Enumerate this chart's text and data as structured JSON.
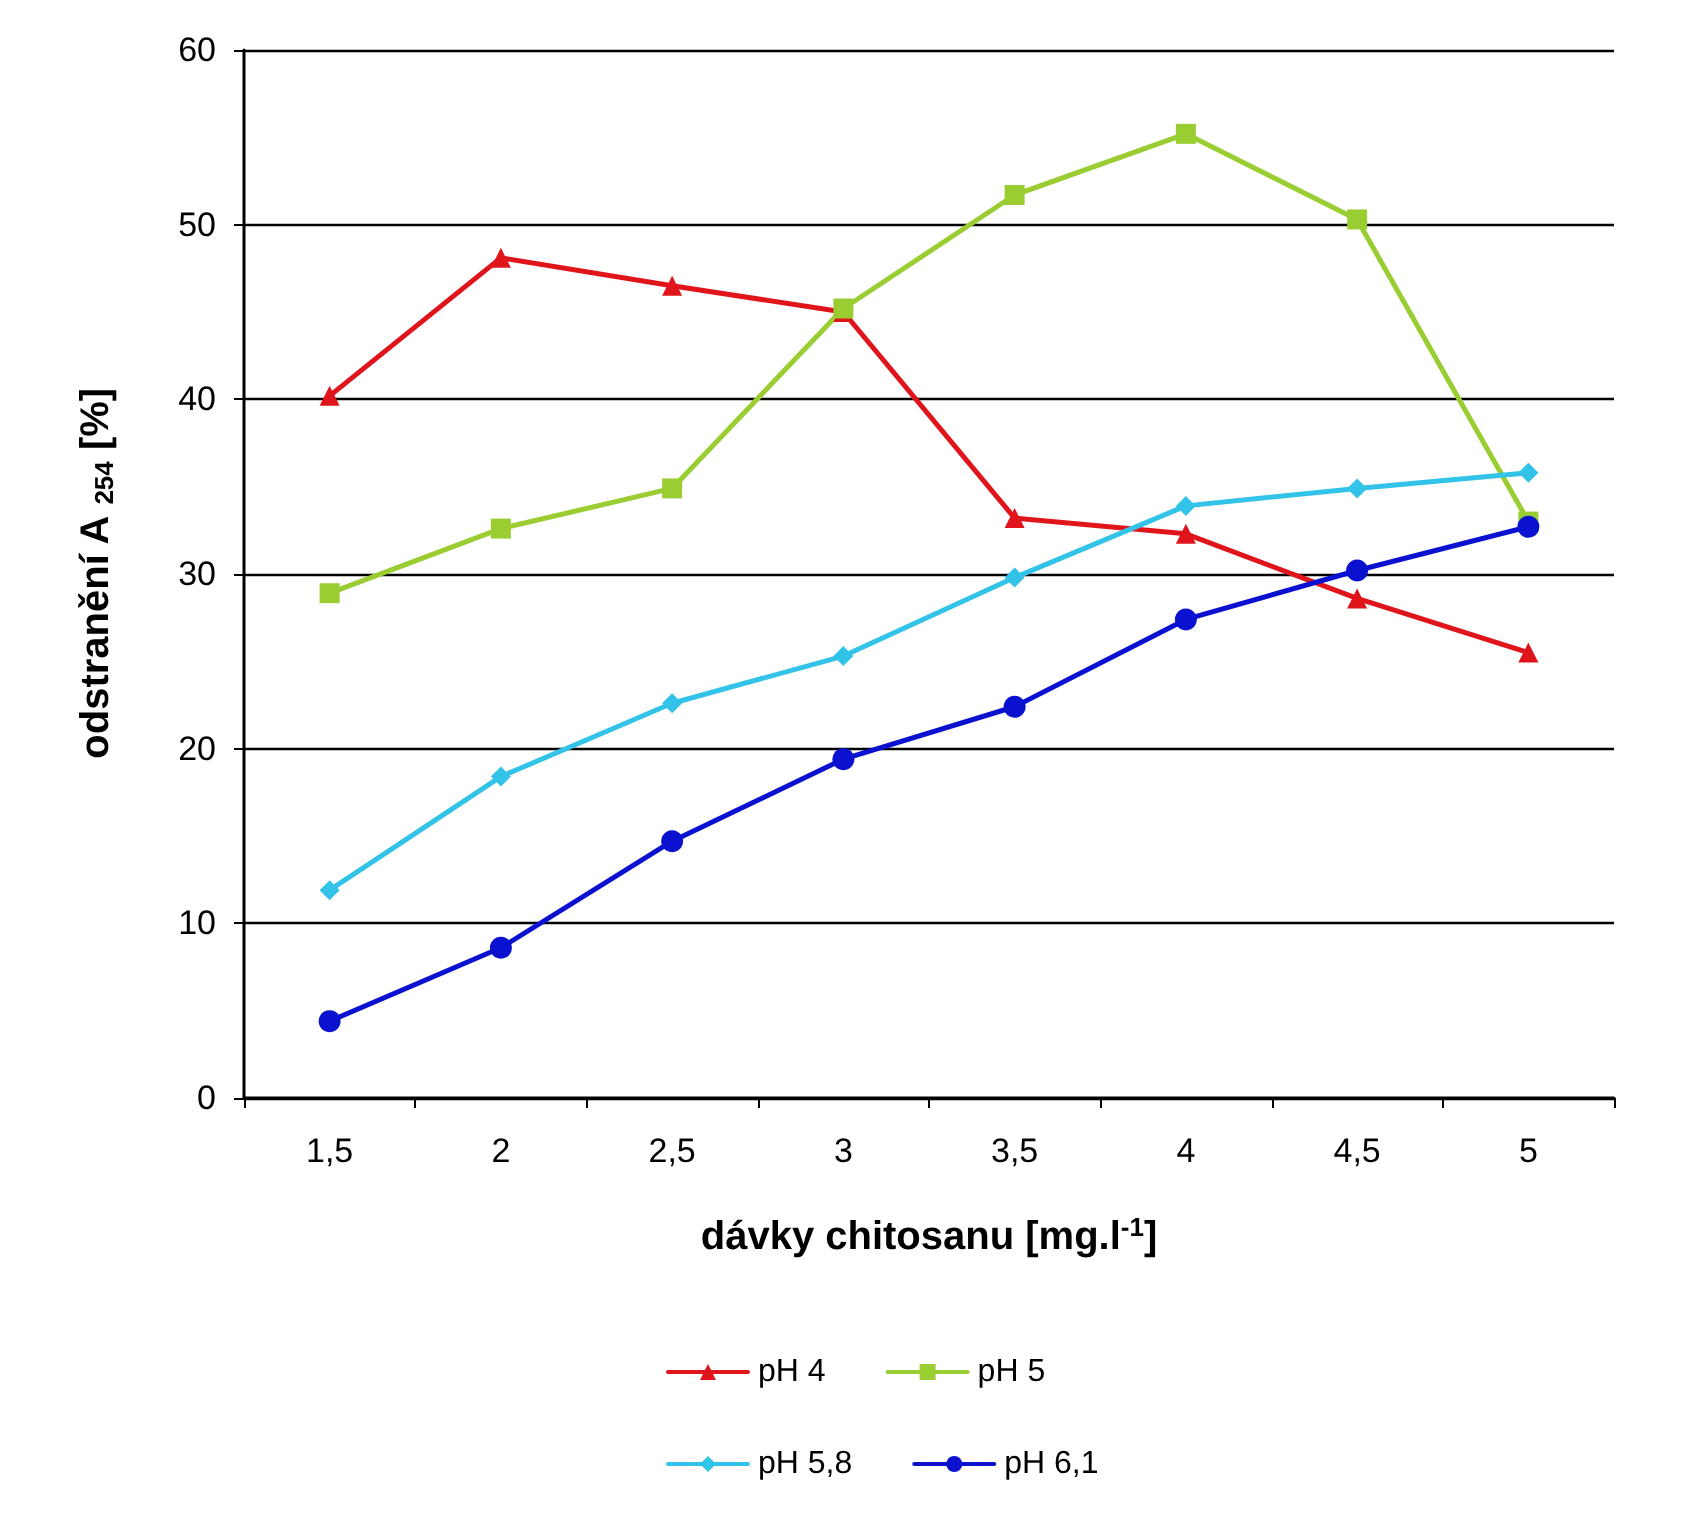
{
  "chart_data": {
    "type": "line",
    "xlabel": "dávky chitosanu [mg.l$^{-1}$]",
    "ylabel": "odstranění A $_{254}$ [%]",
    "categories": [
      "1,5",
      "2",
      "2,5",
      "3",
      "3,5",
      "4",
      "4,5",
      "5"
    ],
    "series": [
      {
        "name": "pH 4",
        "color": "#e0151b",
        "marker": "triangle",
        "values": [
          40.2,
          48.1,
          46.5,
          45,
          33.2,
          32.3,
          28.6,
          25.5
        ]
      },
      {
        "name": "pH 5",
        "color": "#9acd32",
        "marker": "square",
        "values": [
          28.9,
          32.6,
          34.9,
          45.2,
          51.7,
          55.2,
          50.3,
          33
        ]
      },
      {
        "name": "pH 5,8",
        "color": "#33c3e8",
        "marker": "diamond",
        "values": [
          11.9,
          18.4,
          22.6,
          25.3,
          29.8,
          33.9,
          34.9,
          35.8
        ]
      },
      {
        "name": "pH 6,1",
        "color": "#0a12d0",
        "marker": "circle",
        "values": [
          4.4,
          8.6,
          14.7,
          19.4,
          22.4,
          27.4,
          30.2,
          32.7
        ]
      }
    ],
    "ylim": [
      0,
      60
    ],
    "yticks": [
      0,
      10,
      20,
      30,
      40,
      50,
      60
    ],
    "grid": "y",
    "legend": "bottom",
    "line_style": "solid"
  }
}
